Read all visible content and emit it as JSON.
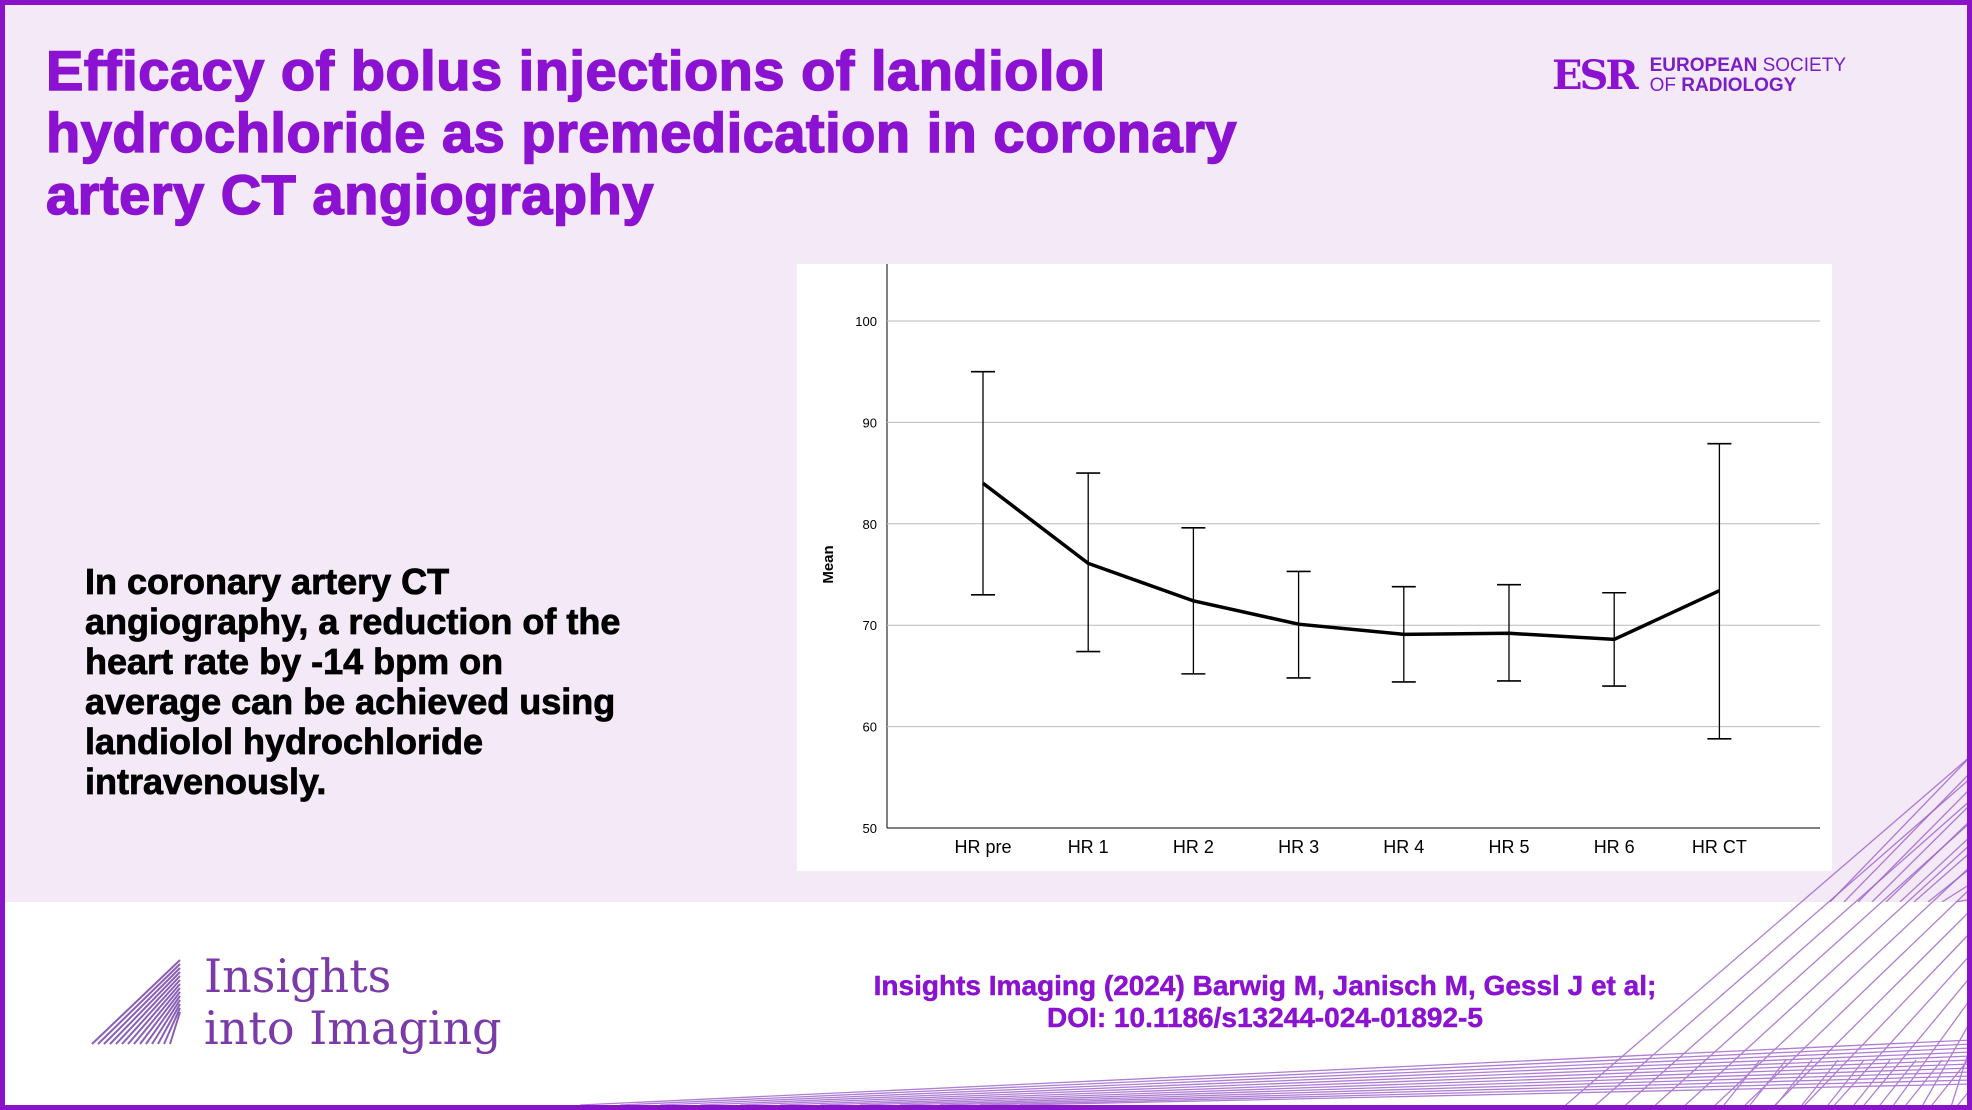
{
  "header": {
    "title_lines": [
      "Efficacy of bolus injections of landiolol",
      "hydrochloride as premedication in coronary",
      "artery CT angiography"
    ],
    "society_logo": {
      "mark": "ESR",
      "line1_bold": "EUROPEAN",
      "line1_rest": "SOCIETY",
      "line2_rest": "OF",
      "line2_bold": "RADIOLOGY"
    }
  },
  "summary_lines": [
    "In coronary artery CT",
    "angiography, a reduction of the",
    "heart rate by -14 bpm on",
    "average can be achieved using",
    "landiolol hydrochloride",
    "intravenously."
  ],
  "footer": {
    "journal_logo_lines": [
      "Insights",
      "into Imaging"
    ],
    "citation_lines": [
      "Insights Imaging (2024) Barwig M, Janisch M, Gessl J et al;",
      "DOI: 10.1186/s13244-024-01892-5"
    ]
  },
  "colors": {
    "accent": "#8a12d0",
    "background": "#f4e9f6"
  },
  "chart_data": {
    "type": "line",
    "title": "",
    "xlabel": "",
    "ylabel": "Mean",
    "ylim": [
      50,
      100
    ],
    "yticks": [
      50,
      60,
      70,
      80,
      90,
      100
    ],
    "grid": true,
    "categories": [
      "HR pre",
      "HR 1",
      "HR 2",
      "HR 3",
      "HR 4",
      "HR 5",
      "HR 6",
      "HR CT"
    ],
    "series": [
      {
        "name": "Mean",
        "values": [
          84.0,
          76.1,
          72.4,
          70.1,
          69.1,
          69.2,
          68.6,
          73.4
        ],
        "error_upper": [
          95.0,
          85.0,
          79.6,
          75.3,
          73.8,
          74.0,
          73.2,
          87.9
        ],
        "error_lower": [
          73.0,
          67.4,
          65.2,
          64.8,
          64.4,
          64.5,
          64.0,
          58.8
        ]
      }
    ]
  }
}
